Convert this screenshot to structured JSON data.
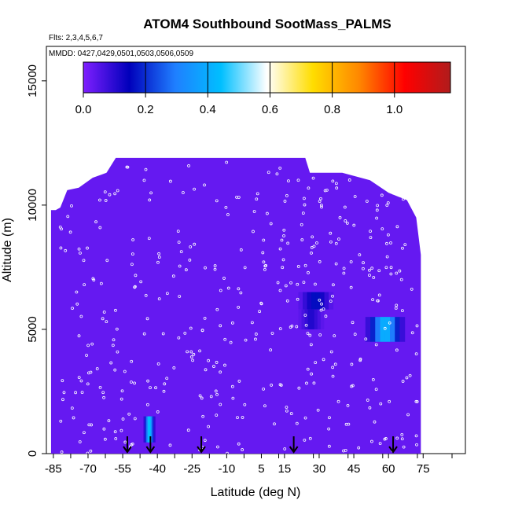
{
  "chart_data": {
    "type": "heatmap",
    "title": "ATOM4 Southbound SootMass_PALMS",
    "flights_label": "Flts: 2,3,4,5,6,7",
    "mmdd_label": "MMDD: 0427,0429,0501,0503,0506,0509",
    "xlabel": "Latitude (deg N)",
    "ylabel": "Altitude (m)",
    "xlim": [
      -87,
      96
    ],
    "ylim": [
      0,
      18000
    ],
    "x_ticks": [
      -85,
      -70,
      -55,
      -40,
      -25,
      -10,
      5,
      15,
      30,
      45,
      60,
      75
    ],
    "x_tick_labels": [
      "-85",
      "-70",
      "-55",
      "-40",
      "-25",
      "-10",
      "5",
      "15",
      "30",
      "45",
      "60",
      "75"
    ],
    "y_ticks": [
      0,
      5000,
      10000,
      15000
    ],
    "y_tick_labels": [
      "0",
      "5000",
      "10000",
      "15000"
    ],
    "colorbar": {
      "range": [
        0,
        1.18
      ],
      "ticks": [
        0.0,
        0.2,
        0.4,
        0.6,
        0.8,
        1.0
      ],
      "tick_labels": [
        "0.0",
        "0.2",
        "0.4",
        "0.6",
        "0.8",
        "1.0"
      ],
      "colors": [
        "#7f1fff",
        "#0000bb",
        "#1f7fff",
        "#00bfff",
        "#ffffff",
        "#ffdd00",
        "#ff8800",
        "#ff0000",
        "#b01c1c"
      ]
    },
    "background_value": 0.03,
    "coverage_envelope": [
      [
        -86,
        0,
        9800
      ],
      [
        -84,
        4000,
        9800
      ],
      [
        -82,
        5400,
        9900
      ],
      [
        -79,
        5600,
        10600
      ],
      [
        -74,
        6000,
        10700
      ],
      [
        -68,
        7000,
        11100
      ],
      [
        -62,
        8500,
        11300
      ],
      [
        -58,
        9200,
        11900
      ],
      [
        -46,
        9600,
        11900
      ],
      [
        -42,
        10000,
        11900
      ],
      [
        -30,
        10000,
        11900
      ],
      [
        0,
        10000,
        11900
      ],
      [
        24,
        10000,
        11900
      ],
      [
        26,
        10000,
        11300
      ],
      [
        40,
        10000,
        11300
      ],
      [
        52,
        11200,
        11000
      ],
      [
        60,
        11200,
        10500
      ],
      [
        68,
        11300,
        10200
      ],
      [
        72,
        11200,
        9500
      ],
      [
        74,
        11200,
        8000
      ]
    ],
    "hotspots": [
      {
        "lat": [
          -46,
          -41
        ],
        "alt": [
          450,
          1500
        ],
        "peak": 0.5
      },
      {
        "lat": [
          21,
          36
        ],
        "alt": [
          5800,
          6500
        ],
        "peak": 0.18
      },
      {
        "lat": [
          21,
          32
        ],
        "alt": [
          5000,
          5800
        ],
        "peak": 0.12
      },
      {
        "lat": [
          50,
          67
        ],
        "alt": [
          4500,
          5500
        ],
        "peak": 0.45
      }
    ],
    "flight_markers_lat": [
      -53,
      -43,
      -21,
      19,
      62
    ]
  }
}
